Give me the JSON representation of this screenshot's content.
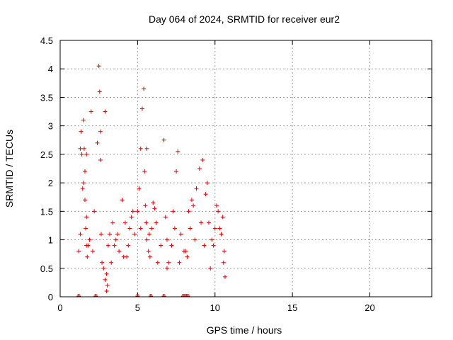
{
  "chart_data": {
    "type": "scatter",
    "title": "Day 064 of 2024, SRMTID for receiver eur2",
    "xlabel": "GPS time / hours",
    "ylabel": "SRMTID / TECUs",
    "xlim": [
      0,
      24
    ],
    "ylim": [
      0,
      4.5
    ],
    "xticks": [
      0,
      5,
      10,
      15,
      20
    ],
    "xtick_labels": [
      "0",
      "5",
      "10",
      "15",
      "20"
    ],
    "yticks": [
      0,
      0.5,
      1,
      1.5,
      2,
      2.5,
      3,
      3.5,
      4,
      4.5
    ],
    "ytick_labels": [
      "0",
      "0.5",
      "1",
      "1.5",
      "2",
      "2.5",
      "3",
      "3.5",
      "4",
      "4.5"
    ],
    "grid": true,
    "marker": "plus",
    "color": "#e00000",
    "series": [
      {
        "name": "SRMTID",
        "x": [
          1.2,
          1.3,
          1.35,
          1.4,
          1.45,
          1.5,
          1.55,
          1.6,
          1.65,
          1.7,
          1.75,
          1.8,
          1.9,
          2.0,
          2.2,
          2.5,
          2.55,
          2.6,
          2.65,
          2.7,
          2.8,
          2.9,
          3.0,
          3.05,
          3.1,
          3.2,
          3.4,
          3.6,
          3.8,
          4.0,
          4.2,
          4.4,
          4.6,
          4.8,
          5.0,
          5.1,
          5.2,
          5.3,
          5.4,
          5.45,
          5.5,
          5.55,
          5.6,
          5.7,
          5.8,
          5.9,
          6.0,
          6.1,
          6.2,
          6.7,
          6.8,
          6.9,
          7.0,
          7.2,
          7.4,
          7.6,
          7.8,
          8.0,
          8.2,
          8.4,
          8.6,
          8.8,
          9.0,
          9.2,
          9.4,
          9.6,
          9.8,
          10.0,
          10.2,
          10.4,
          10.6,
          10.65,
          1.5,
          1.6,
          1.7,
          2.4,
          2.6,
          3.3,
          3.5,
          4.1,
          4.5,
          5.6,
          5.75,
          6.3,
          7.3,
          7.7,
          8.3,
          8.5,
          9.3,
          9.7,
          10.1,
          10.5,
          1.3,
          1.7,
          2.1,
          2.9,
          3.0,
          3.7,
          4.3,
          4.7,
          5.2,
          6.5,
          6.9,
          7.5,
          8.1,
          8.7,
          9.1,
          9.5,
          9.9,
          10.3,
          10.55
        ],
        "y": [
          0.8,
          2.6,
          2.9,
          2.5,
          1.9,
          2.0,
          2.6,
          1.7,
          1.2,
          0.9,
          0.7,
          0.9,
          1.0,
          3.25,
          1.5,
          4.05,
          3.6,
          2.9,
          1.1,
          0.6,
          0.5,
          0.3,
          0.1,
          0.2,
          0.9,
          1.1,
          1.3,
          1.0,
          0.8,
          1.7,
          1.3,
          0.9,
          1.4,
          1.1,
          1.5,
          1.9,
          2.6,
          3.3,
          3.65,
          2.2,
          1.6,
          1.3,
          1.0,
          0.8,
          0.7,
          1.2,
          1.65,
          1.55,
          1.3,
          2.75,
          1.4,
          1.0,
          0.6,
          0.9,
          1.2,
          2.55,
          1.1,
          0.8,
          0.7,
          1.2,
          1.6,
          1.9,
          2.25,
          2.4,
          1.8,
          1.3,
          1.0,
          1.2,
          1.5,
          1.1,
          0.8,
          0.35,
          3.1,
          2.2,
          2.5,
          2.7,
          2.4,
          0.6,
          0.9,
          0.7,
          1.2,
          2.6,
          1.1,
          0.6,
          1.5,
          0.6,
          1.5,
          1.7,
          0.9,
          0.5,
          1.6,
          1.4,
          1.1,
          1.4,
          0.8,
          3.25,
          0.4,
          1.1,
          0.7,
          1.5,
          1.2,
          0.9,
          0.5,
          2.2,
          0.8,
          1.0,
          1.3,
          2.0,
          0.9,
          1.2,
          0.6
        ]
      }
    ],
    "baseline_marks_x": [
      1.2,
      2.3,
      5.0,
      5.85,
      6.7,
      7.95,
      8.05,
      8.15,
      8.25
    ]
  }
}
